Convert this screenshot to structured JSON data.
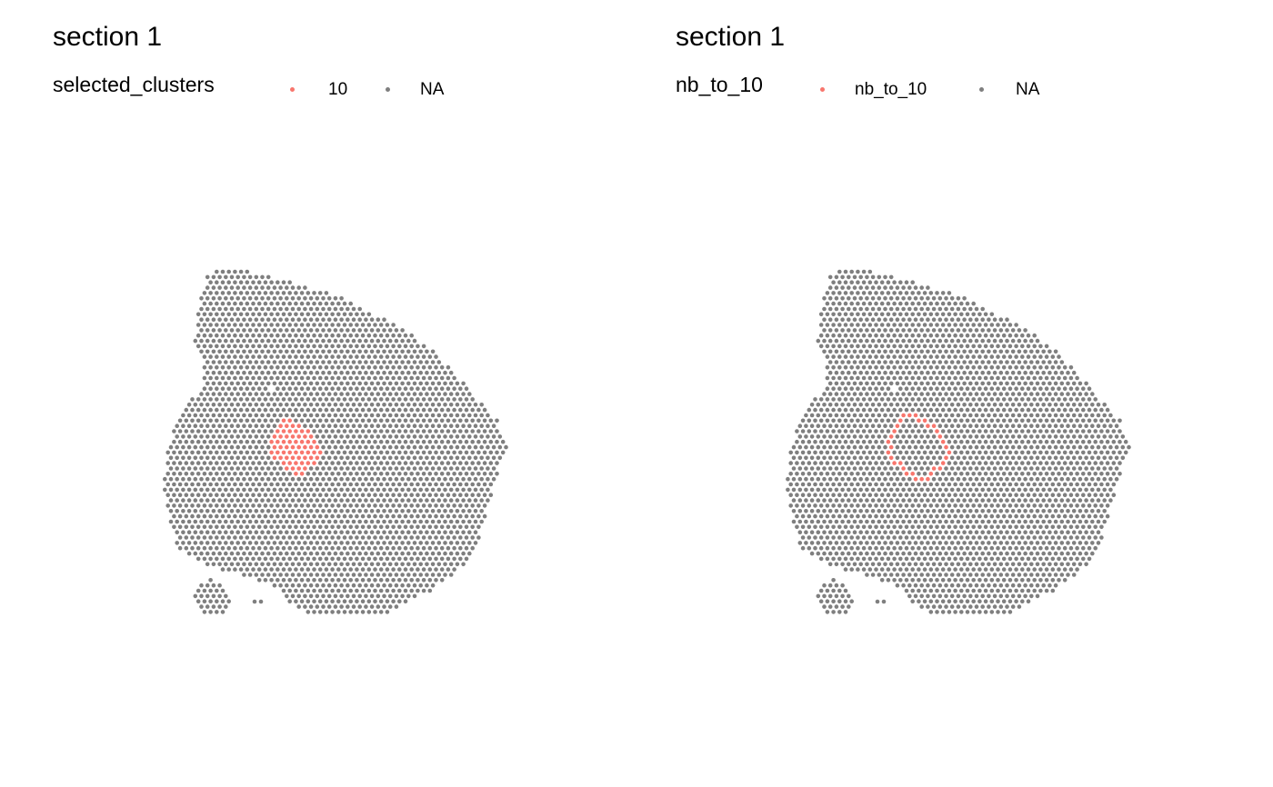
{
  "chart_data": [
    {
      "type": "scatter",
      "title": "section 1",
      "legend_title": "selected_clusters",
      "legend_position": "top",
      "legend": [
        {
          "label": "10",
          "color": "#F8766D"
        },
        {
          "label": "NA",
          "color": "#7F7F7F"
        }
      ],
      "grid": false,
      "axes": false
    },
    {
      "type": "scatter",
      "title": "section 1",
      "legend_title": "nb_to_10",
      "legend_position": "top",
      "legend": [
        {
          "label": "nb_to_10",
          "color": "#F8766D"
        },
        {
          "label": "NA",
          "color": "#7F7F7F"
        }
      ],
      "grid": false,
      "axes": false
    }
  ]
}
